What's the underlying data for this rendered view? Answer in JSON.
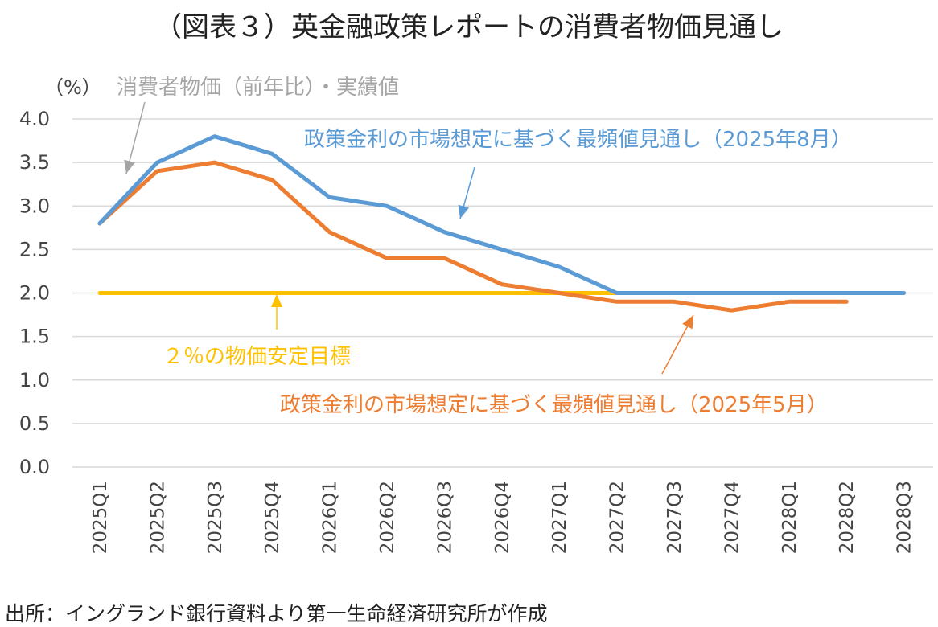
{
  "title": "（図表３）英金融政策レポートの消費者物価見通し",
  "source": "出所：イングランド銀行資料より第一生命経済研究所が作成",
  "chart_data": {
    "type": "line",
    "unit_label": "（%）",
    "categories": [
      "2025Q1",
      "2025Q2",
      "2025Q3",
      "2025Q4",
      "2026Q1",
      "2026Q2",
      "2026Q3",
      "2026Q4",
      "2027Q1",
      "2027Q2",
      "2027Q3",
      "2027Q4",
      "2028Q1",
      "2028Q2",
      "2028Q3"
    ],
    "ylim": [
      0,
      4.0
    ],
    "yticks": [
      "0.0",
      "0.5",
      "1.0",
      "1.5",
      "2.0",
      "2.5",
      "3.0",
      "3.5",
      "4.0"
    ],
    "grid": true,
    "series": [
      {
        "name": "消費者物価（前年比）・実績値",
        "color": "#a5a5a5",
        "values": [
          2.8,
          3.5,
          null,
          null,
          null,
          null,
          null,
          null,
          null,
          null,
          null,
          null,
          null,
          null,
          null
        ]
      },
      {
        "name": "政策金利の市場想定に基づく最頻値見通し（2025年8月）",
        "color": "#5b9bd5",
        "values": [
          2.8,
          3.5,
          3.8,
          3.6,
          3.1,
          3.0,
          2.7,
          2.5,
          2.3,
          2.0,
          2.0,
          2.0,
          2.0,
          2.0,
          2.0
        ]
      },
      {
        "name": "政策金利の市場想定に基づく最頻値見通し（2025年5月）",
        "color": "#ed7d31",
        "values": [
          2.8,
          3.4,
          3.5,
          3.3,
          2.7,
          2.4,
          2.4,
          2.1,
          2.0,
          1.9,
          1.9,
          1.8,
          1.9,
          1.9,
          null
        ]
      },
      {
        "name": "２％の物価安定目標",
        "color": "#ffc000",
        "values": [
          2.0,
          2.0,
          2.0,
          2.0,
          2.0,
          2.0,
          2.0,
          2.0,
          2.0,
          2.0,
          null,
          null,
          null,
          null,
          null
        ]
      }
    ],
    "annotations": {
      "actual": "消費者物価（前年比）・実績値",
      "aug": "政策金利の市場想定に基づく最頻値見通し（2025年8月）",
      "may": "政策金利の市場想定に基づく最頻値見通し（2025年5月）",
      "target": "２％の物価安定目標"
    }
  }
}
